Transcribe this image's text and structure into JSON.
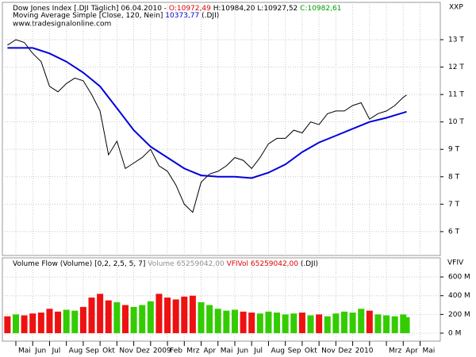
{
  "chart_data": [
    {
      "type": "line",
      "header": [
        "Dow Jones Index [.DJI  Täglich] 06.04.2010 - ",
        "O:10972,49",
        " H:10984,20 L:10927,52 ",
        "C:10982,61"
      ],
      "header_colors": [
        "#000000",
        "#e00000",
        "#000000",
        "#00a000"
      ],
      "ma_header": [
        "Moving Average Simple [Close, 120, Nein] ",
        "10373,77",
        " (.DJI)"
      ],
      "ma_header_colors": [
        "#000000",
        "#0000cc",
        "#000000"
      ],
      "source": "www.tradesignalonline.com",
      "axis_label": "XXP",
      "categories": [
        "Mai",
        "Jun",
        "Jul",
        "Aug",
        "Sep",
        "Okt",
        "Nov",
        "Dez",
        "2009",
        "Feb",
        "Mrz",
        "Apr",
        "Mai",
        "Jun",
        "Jul",
        "Aug",
        "Sep",
        "Okt",
        "Nov",
        "Dez",
        "2010",
        null,
        "Mrz",
        "Apr",
        "Mai"
      ],
      "xlim": [
        -0.8,
        25.2
      ],
      "x": [
        -0.5,
        0,
        0.5,
        1,
        1.5,
        2,
        2.5,
        3,
        3.5,
        4,
        4.5,
        5,
        5.5,
        6,
        6.5,
        7,
        7.5,
        8,
        8.5,
        9,
        9.5,
        10,
        10.5,
        11,
        11.5,
        12,
        12.5,
        13,
        13.5,
        14,
        14.5,
        15,
        15.5,
        16,
        16.5,
        17,
        17.5,
        18,
        18.5,
        19,
        19.5,
        20,
        20.5,
        21,
        21.5,
        22,
        22.5,
        23,
        23.2
      ],
      "series": [
        {
          "name": "Dow Jones Index",
          "color": "#000000",
          "values": [
            12800,
            13000,
            12900,
            12500,
            12200,
            11300,
            11100,
            11400,
            11600,
            11500,
            11000,
            10400,
            8800,
            9300,
            8300,
            8500,
            8700,
            9000,
            8400,
            8200,
            7700,
            7000,
            6700,
            7800,
            8100,
            8200,
            8400,
            8700,
            8600,
            8300,
            8700,
            9200,
            9400,
            9400,
            9700,
            9600,
            10000,
            9900,
            10300,
            10400,
            10400,
            10600,
            10700,
            10100,
            10300,
            10400,
            10600,
            10900,
            10980
          ]
        },
        {
          "name": "Moving Average Simple",
          "color": "#0000dd",
          "x": [
            -0.5,
            1,
            2,
            3,
            4,
            5,
            6,
            7,
            8,
            9,
            10,
            11,
            12,
            13,
            14,
            15,
            16,
            17,
            18,
            19,
            20,
            21,
            22,
            23.2
          ],
          "values": [
            12700,
            12700,
            12500,
            12200,
            11800,
            11300,
            10500,
            9700,
            9100,
            8700,
            8300,
            8050,
            8000,
            8000,
            7950,
            8150,
            8450,
            8900,
            9250,
            9500,
            9750,
            10000,
            10150,
            10374
          ]
        }
      ],
      "ylim": [
        5130,
        14360
      ],
      "yticks": [
        {
          "value": 6000,
          "label": "6 T"
        },
        {
          "value": 7000,
          "label": "7 T"
        },
        {
          "value": 8000,
          "label": "8 T"
        },
        {
          "value": 9000,
          "label": "9 T"
        },
        {
          "value": 10000,
          "label": "10 T"
        },
        {
          "value": 11000,
          "label": "11 T"
        },
        {
          "value": 12000,
          "label": "12 T"
        },
        {
          "value": 13000,
          "label": "13 T"
        }
      ],
      "grid": true
    },
    {
      "type": "bar",
      "header": [
        "Volume Flow (Volume) [0,2, 2,5, 5, 7] ",
        "Volume 65259042,00 ",
        "VFIVol 65259042,00",
        " (.DJI)"
      ],
      "header_colors": [
        "#000000",
        "#909090",
        "#e00000",
        "#000000"
      ],
      "axis_label": "VFIV",
      "up_color": "#33cc00",
      "down_color": "#ee1111",
      "values": [
        180,
        200,
        190,
        210,
        220,
        260,
        230,
        250,
        240,
        280,
        380,
        420,
        350,
        330,
        300,
        280,
        300,
        340,
        420,
        380,
        360,
        390,
        400,
        330,
        300,
        260,
        240,
        250,
        230,
        220,
        210,
        230,
        220,
        200,
        210,
        220,
        190,
        200,
        180,
        210,
        230,
        220,
        260,
        240,
        200,
        190,
        180,
        200,
        170
      ],
      "ylim": [
        -85,
        804
      ],
      "yticks": [
        {
          "value": 0,
          "label": "0 M"
        },
        {
          "value": 200,
          "label": "200 M"
        },
        {
          "value": 400,
          "label": "400 M"
        },
        {
          "value": 600,
          "label": "600 M"
        }
      ],
      "grid": true
    }
  ]
}
